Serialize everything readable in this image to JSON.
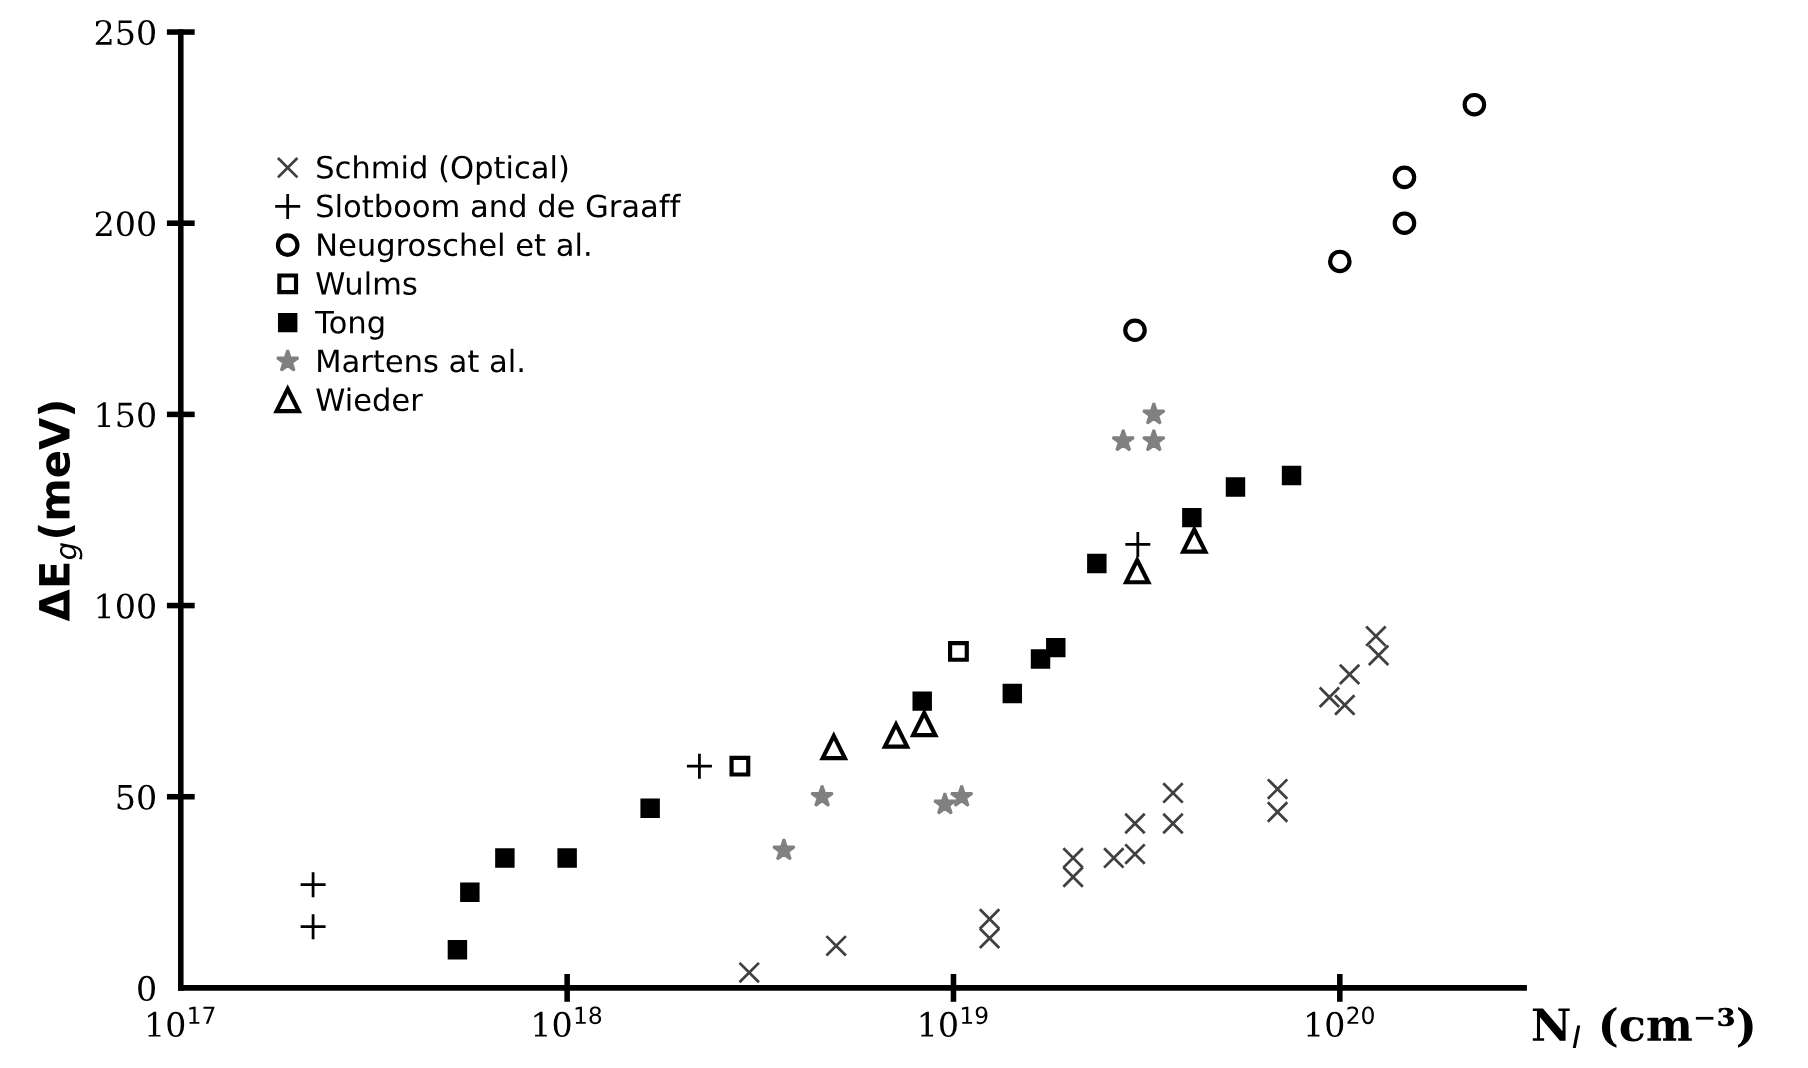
{
  "chart_data": {
    "type": "scatter",
    "xlabel": "N$_{I}$ (cm⁻³)",
    "ylabel": "ΔE$_{g}$(meV)",
    "log": "x",
    "xlim": [
      1e+17,
      3e+20
    ],
    "xticks": [
      {
        "value": 1e+17,
        "label": "10$^{17}$"
      },
      {
        "value": 1e+18,
        "label": "10$^{18}$"
      },
      {
        "value": 1e+19,
        "label": "10$^{19}$"
      },
      {
        "value": 1e+20,
        "label": "10$^{20}$"
      }
    ],
    "ylim": [
      0,
      250
    ],
    "yticks": [
      0,
      50,
      100,
      150,
      200,
      250
    ],
    "grid": false,
    "legend": "top left",
    "series": [
      {
        "name": "Schmid (Optical)",
        "marker": "x",
        "color": "#404040",
        "x": [
          2.96e+18,
          4.97e+18,
          1.24e+19,
          1.24e+19,
          2.04e+19,
          2.04e+19,
          2.6e+19,
          2.95e+19,
          2.95e+19,
          3.7e+19,
          3.7e+19,
          6.9e+19,
          6.9e+19,
          9.4e+19,
          1.03e+20,
          1.06e+20,
          1.24e+20,
          1.26e+20
        ],
        "values": [
          4,
          11,
          18,
          13,
          34,
          29,
          34,
          35,
          43,
          51,
          43,
          52,
          46,
          76,
          74,
          82,
          92,
          87
        ]
      },
      {
        "name": "Slotboom and de Graaff",
        "marker": "cross",
        "color": "#000000",
        "x": [
          2.2e+17,
          2.2e+17,
          2.2e+18,
          3e+19
        ],
        "values": [
          27,
          16,
          58,
          116
        ]
      },
      {
        "name": "Neugroschel et al.",
        "marker": "circle",
        "color": "#000000",
        "x": [
          2.95e+19,
          1e+20,
          1.47e+20,
          1.47e+20,
          2.23e+20
        ],
        "values": [
          172,
          190,
          200,
          212,
          231
        ]
      },
      {
        "name": "Wulms",
        "marker": "square",
        "color": "#000000",
        "x": [
          2.8e+18,
          1.03e+19
        ],
        "values": [
          58,
          88
        ]
      },
      {
        "name": "Tong",
        "marker": "square",
        "color": "#000000",
        "x": [
          5.2e+17,
          5.6e+17,
          6.9e+17,
          1e+18,
          1.64e+18,
          8.3e+18,
          1.42e+19,
          1.68e+19,
          1.84e+19,
          2.35e+19,
          4.14e+19,
          5.37e+19,
          7.5e+19
        ],
        "values": [
          10,
          25,
          34,
          34,
          47,
          75,
          77,
          86,
          89,
          111,
          123,
          131,
          134
        ]
      },
      {
        "name": "Martens at al.",
        "marker": "star",
        "color": "#808080",
        "x": [
          3.64e+18,
          4.57e+18,
          9.5e+18,
          1.05e+19,
          2.75e+19,
          3.3e+19,
          3.3e+19
        ],
        "values": [
          36,
          50,
          48,
          50,
          143,
          143,
          150
        ]
      },
      {
        "name": "Wieder",
        "marker": "triangle",
        "color": "#000000",
        "x": [
          4.9e+18,
          7.1e+18,
          8.4e+18,
          2.99e+19,
          4.2e+19
        ],
        "values": [
          63,
          66,
          69,
          109,
          117
        ]
      }
    ]
  }
}
